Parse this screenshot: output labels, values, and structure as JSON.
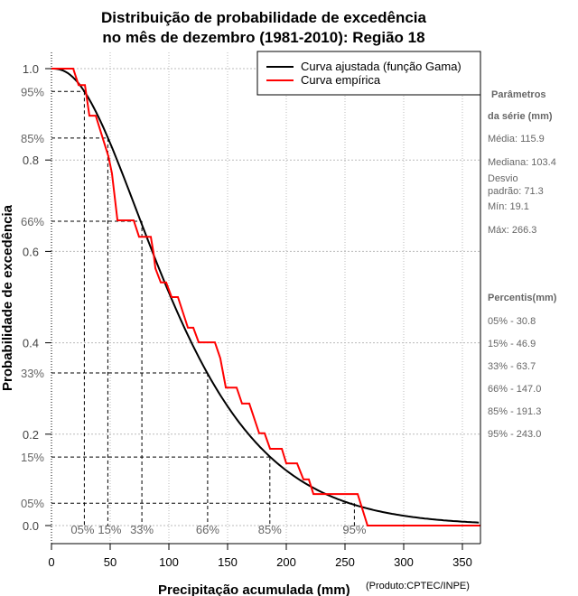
{
  "chart_data": {
    "type": "line",
    "title": [
      "Distribuição de probabilidade de excedência",
      "no mês de dezembro (1981-2010): Região 18"
    ],
    "xlabel": "Precipitação acumulada (mm)",
    "ylabel": "Probabilidade de excedência",
    "credit": "(Produto:CPTEC/INPE)",
    "xlim": [
      0,
      365
    ],
    "ylim": [
      0,
      1
    ],
    "xticks": [
      "0",
      "50",
      "100",
      "150",
      "200",
      "250",
      "300",
      "350"
    ],
    "xtick_values": [
      0,
      50,
      100,
      150,
      200,
      250,
      300,
      350
    ],
    "yticks": [
      "0.0",
      "0.2",
      "0.4",
      "0.6",
      "0.8",
      "1.0"
    ],
    "ytick_values": [
      0,
      0.2,
      0.4,
      0.6,
      0.8,
      1.0
    ],
    "grid": true,
    "legend": {
      "placement": "top-right",
      "entries": [
        {
          "label": "Curva ajustada (função Gama)",
          "color": "#000000"
        },
        {
          "label": "Curva empírica",
          "color": "#ff0000"
        }
      ]
    },
    "gamma_fit": {
      "mean": 115.9,
      "sd": 71.3
    },
    "empirical": {
      "x": [
        0,
        18.5,
        23.1,
        28.5,
        32.3,
        37.7,
        44.6,
        48.5,
        51.5,
        56.2,
        70,
        74.6,
        84.6,
        86.9,
        88.5,
        93.1,
        97.7,
        102.3,
        107.7,
        116.2,
        120.8,
        125.4,
        139.2,
        143.8,
        148.5,
        157.7,
        162.3,
        168.5,
        176.9,
        181.5,
        186.2,
        196.2,
        200,
        209.2,
        214.6,
        219.2,
        223.1,
        260.8,
        269.2,
        365
      ],
      "y": [
        1.0,
        1.0,
        0.964,
        0.964,
        0.897,
        0.897,
        0.84,
        0.808,
        0.771,
        0.668,
        0.668,
        0.632,
        0.632,
        0.597,
        0.563,
        0.532,
        0.532,
        0.5,
        0.5,
        0.433,
        0.433,
        0.401,
        0.401,
        0.366,
        0.302,
        0.302,
        0.267,
        0.267,
        0.202,
        0.202,
        0.168,
        0.168,
        0.136,
        0.136,
        0.101,
        0.101,
        0.069,
        0.069,
        0.0,
        0.0
      ]
    },
    "percentile_markers": [
      {
        "label": "05%",
        "y_label": "95%",
        "x": 28,
        "prob": 0.95
      },
      {
        "label": "15%",
        "y_label": "85%",
        "x": 48,
        "prob": 0.848
      },
      {
        "label": "33%",
        "y_label": "66%",
        "x": 77,
        "prob": 0.666
      },
      {
        "label": "66%",
        "y_label": "33%",
        "x": 133,
        "prob": 0.334
      },
      {
        "label": "85%",
        "y_label": "15%",
        "x": 186,
        "prob": 0.15
      },
      {
        "label": "95%",
        "y_label": "05%",
        "x": 258,
        "prob": 0.049
      }
    ]
  },
  "side_panel": {
    "params_title_1": "Parâmetros",
    "params_title_2": "da série (mm)",
    "media": "Média: 115.9",
    "mediana": "Mediana: 103.4",
    "desvio_1": "Desvio",
    "desvio_2": "padrão: 71.3",
    "min": "Mín: 19.1",
    "max": "Máx: 266.3",
    "percentis_title": "Percentis(mm)",
    "percentis": [
      "05% - 30.8",
      "15% - 46.9",
      "33% - 63.7",
      "66% - 147.0",
      "85% - 191.3",
      "95% - 243.0"
    ]
  }
}
